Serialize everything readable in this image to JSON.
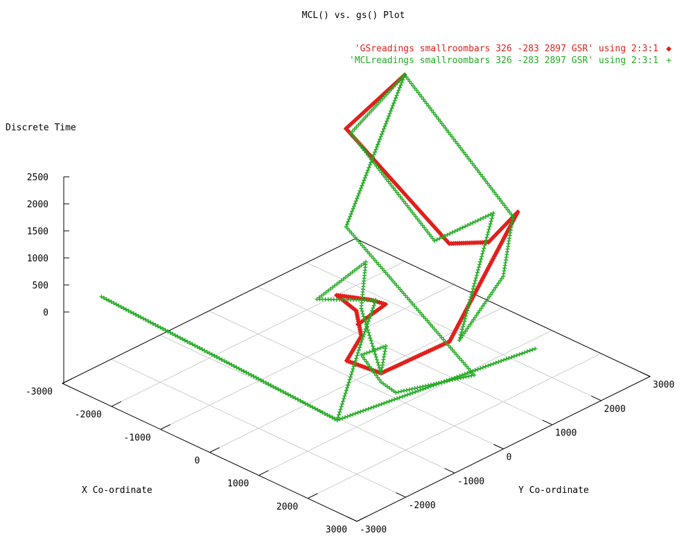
{
  "chart_data": {
    "type": "scatter",
    "title": "MCL() vs. gs() Plot",
    "xlabel": "X Co-ordinate",
    "ylabel": "Y Co-ordinate",
    "zlabel": "Discrete Time",
    "xlim": [
      -3000,
      3000
    ],
    "ylim": [
      -3000,
      3000
    ],
    "zlim": [
      0,
      2500
    ],
    "x_ticks": [
      "-3000",
      "-2000",
      "-1000",
      "0",
      "1000",
      "2000",
      "3000"
    ],
    "y_ticks": [
      "-3000",
      "-2000",
      "-1000",
      "0",
      "1000",
      "2000",
      "3000"
    ],
    "z_ticks": [
      "0",
      "500",
      "1000",
      "1500",
      "2000",
      "2500"
    ],
    "grid": true,
    "legend_position": "top-right",
    "series": [
      {
        "name": "'GSreadings smallroombars 326 -283 2897 GSR' using 2:3:1",
        "marker": "◆",
        "color": "#e0201c",
        "path": [
          [
            -1600,
            2600,
            2480
          ],
          [
            -1900,
            1700,
            1760
          ],
          [
            800,
            1100,
            1050
          ],
          [
            1400,
            1300,
            1240
          ],
          [
            1500,
            1800,
            1620
          ],
          [
            2200,
            -300,
            460
          ],
          [
            1800,
            -1300,
            150
          ],
          [
            1200,
            -1400,
            170
          ],
          [
            900,
            -800,
            230
          ],
          [
            300,
            -300,
            220
          ],
          [
            -200,
            -200,
            250
          ],
          [
            200,
            100,
            200
          ],
          [
            400,
            200,
            160
          ],
          [
            500,
            -500,
            120
          ]
        ]
      },
      {
        "name": "'MCLreadings smallroombars 326 -283 2897 GSR' using 2:3:1",
        "marker": "+",
        "color": "#22aa22",
        "path": [
          [
            -1600,
            2600,
            2480
          ],
          [
            -1800,
            1700,
            1720
          ],
          [
            600,
            1000,
            1060
          ],
          [
            1200,
            1600,
            1560
          ],
          [
            2300,
            -200,
            480
          ],
          [
            2000,
            1000,
            1000
          ],
          [
            1500,
            1700,
            1580
          ],
          [
            -1600,
            2600,
            2480
          ],
          [
            -1400,
            1200,
            380
          ],
          [
            2800,
            -400,
            140
          ],
          [
            2400,
            -1600,
            180
          ],
          [
            2000,
            -1500,
            160
          ],
          [
            1300,
            -1200,
            230
          ],
          [
            1400,
            -800,
            260
          ],
          [
            1800,
            -1300,
            150
          ],
          [
            300,
            -200,
            220
          ],
          [
            -600,
            800,
            250
          ],
          [
            -400,
            -400,
            180
          ],
          [
            200,
            200,
            150
          ],
          [
            900,
            -800,
            120
          ],
          [
            2300,
            -2700,
            120
          ],
          [
            -2800,
            -2400,
            100
          ],
          [
            2300,
            -2700,
            120
          ],
          [
            2900,
            800,
            150
          ]
        ]
      }
    ]
  }
}
